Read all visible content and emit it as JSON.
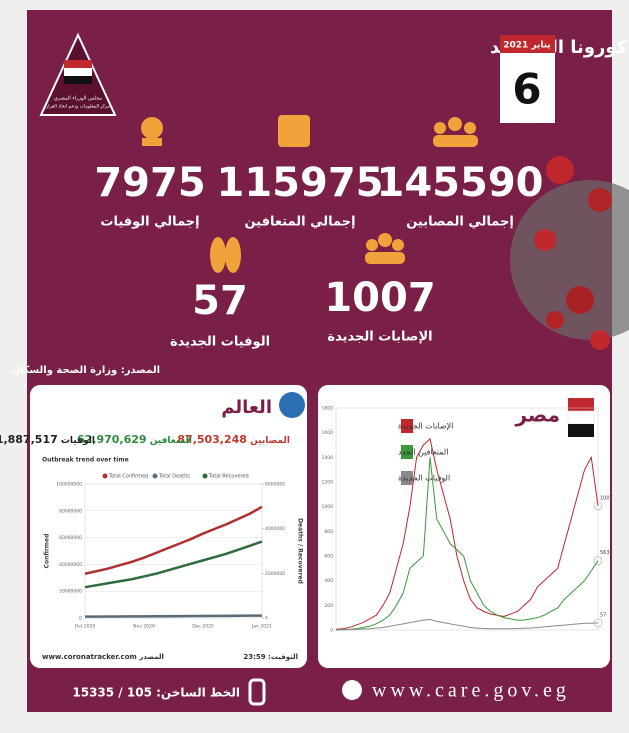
{
  "header": {
    "title": "التقرير اليومي لإحصائيات فيروس كورونا المستجد",
    "month": "يناير 2021",
    "day": "6",
    "logo_text": [
      "مجلس الوزراء المصري",
      "مركز المعلومات ودعم اتخاذ القرار"
    ]
  },
  "stats": [
    {
      "value": "145590",
      "label": "إجمالي المصابين"
    },
    {
      "value": "115975",
      "label": "إجمالي المتعافين"
    },
    {
      "value": "7975",
      "label": "إجمالي الوفيات"
    },
    {
      "value": "1007",
      "label": "الإصابات الجديدة"
    },
    {
      "value": "57",
      "label": "الوفيات الجديدة"
    }
  ],
  "source": "المصدر: وزارة الصحة والسكان",
  "world": {
    "title": "العالم",
    "totals": [
      {
        "label": "المصابين",
        "value": "87,503,248",
        "color": "#c0392b"
      },
      {
        "label": "المتعافين",
        "value": "62,970,629",
        "color": "#2e8b3e"
      },
      {
        "label": "الوفيات",
        "value": "1,887,517",
        "color": "#222222"
      }
    ],
    "chart_data": {
      "type": "line",
      "title": "Outbreak trend over time",
      "ylabel": "Confirmed",
      "y2label": "Deaths / Recovered",
      "legend": "top",
      "categories": [
        "Oct 2020",
        null,
        null,
        null,
        null,
        "Nov 2020",
        null,
        null,
        null,
        null,
        "Dec 2020",
        null,
        null,
        null,
        null,
        "Jan 2021"
      ],
      "series": [
        {
          "name": "Total Confirmed",
          "color": "#b03030",
          "values": [
            33000000,
            35000000,
            37000000,
            39500000,
            42000000,
            45000000,
            48500000,
            52000000,
            55500000,
            59000000,
            63000000,
            66500000,
            70000000,
            74000000,
            78000000,
            83000000
          ]
        },
        {
          "name": "Total Deaths",
          "color": "#5a6b7a",
          "values": [
            1000000,
            1050000,
            1100000,
            1150000,
            1200000,
            1250000,
            1300000,
            1350000,
            1400000,
            1450000,
            1500000,
            1560000,
            1620000,
            1680000,
            1740000,
            1800000
          ]
        },
        {
          "name": "Total Recovered",
          "color": "#2e6b3e",
          "values": [
            23000000,
            24500000,
            26000000,
            27500000,
            29000000,
            31000000,
            33000000,
            35500000,
            38000000,
            40500000,
            43000000,
            45500000,
            48000000,
            51000000,
            54000000,
            57000000
          ]
        }
      ],
      "ylim": [
        0,
        100000000
      ],
      "yticks": [
        0,
        20000000,
        40000000,
        60000000,
        80000000,
        100000000
      ],
      "y2lim": [
        0,
        6000000
      ],
      "y2ticks": [
        0,
        2000000,
        4000000,
        6000000
      ],
      "grid": true
    },
    "source": "www.coronatracker.com المصدر",
    "time": "التوقيت: 23:59"
  },
  "egypt": {
    "title": "مصر",
    "chart_data": {
      "type": "line",
      "legend": "top-left",
      "categories": [
        null,
        null,
        null,
        null,
        null,
        null,
        null,
        null,
        null,
        null,
        null,
        null,
        null,
        null,
        null,
        null,
        null,
        null,
        null,
        null,
        null,
        null,
        null,
        null,
        null,
        null,
        null,
        null,
        null,
        null,
        null,
        null,
        null,
        null,
        null,
        null,
        null,
        null,
        null,
        null
      ],
      "series": [
        {
          "name": "الإصابات الجديدة",
          "color": "#c0282d",
          "end_label": "1007",
          "values": [
            5,
            10,
            20,
            40,
            60,
            90,
            120,
            200,
            300,
            500,
            700,
            1000,
            1400,
            1500,
            1550,
            1300,
            1100,
            900,
            600,
            400,
            250,
            180,
            150,
            130,
            120,
            110,
            130,
            150,
            200,
            250,
            350,
            400,
            450,
            500,
            700,
            900,
            1100,
            1300,
            1400,
            1007
          ]
        },
        {
          "name": "المتعافين الجدد",
          "color": "#3a9a3a",
          "end_label": "563",
          "values": [
            0,
            2,
            5,
            10,
            20,
            30,
            50,
            80,
            120,
            200,
            300,
            500,
            550,
            600,
            1400,
            900,
            800,
            700,
            650,
            600,
            400,
            300,
            200,
            150,
            120,
            100,
            90,
            80,
            80,
            90,
            100,
            120,
            150,
            180,
            250,
            300,
            350,
            400,
            480,
            563
          ]
        },
        {
          "name": "الوفيات الجديدة",
          "color": "#8a8a8a",
          "end_label": "57",
          "values": [
            1,
            2,
            3,
            5,
            8,
            10,
            15,
            20,
            30,
            40,
            50,
            60,
            70,
            80,
            85,
            70,
            60,
            50,
            40,
            30,
            20,
            15,
            12,
            10,
            10,
            10,
            10,
            12,
            14,
            16,
            20,
            25,
            30,
            35,
            40,
            45,
            50,
            55,
            55,
            57
          ]
        }
      ],
      "ylim": [
        0,
        1800
      ],
      "yticks": [
        0,
        200,
        400,
        600,
        800,
        1000,
        1200,
        1400,
        1600,
        1800
      ],
      "grid": false
    }
  },
  "footer": {
    "website": "www.care.gov.eg",
    "hotline": "الخط الساخن: 105 / 15335"
  }
}
